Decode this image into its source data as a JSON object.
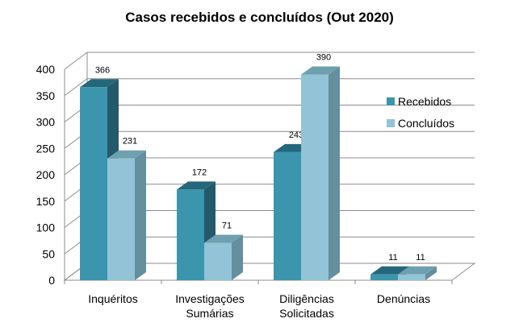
{
  "chart_data": {
    "type": "bar",
    "title": "Casos recebidos e concluídos (Out 2020)",
    "categories": [
      [
        "Inquéritos"
      ],
      [
        "Investigações",
        "Sumárias"
      ],
      [
        "Diligências",
        "Solicitadas"
      ],
      [
        "Denúncias"
      ]
    ],
    "series": [
      {
        "name": "Recebidos",
        "values": [
          366,
          172,
          243,
          11
        ],
        "color": "#3b95ad",
        "top_color": "#25677a",
        "side_color": "#23596b"
      },
      {
        "name": "Concluídos",
        "values": [
          231,
          71,
          390,
          11
        ],
        "color": "#92c3d6",
        "top_color": "#6fa0b0",
        "side_color": "#638f9e"
      }
    ],
    "ylim": [
      0,
      400
    ],
    "yticks": [
      0,
      50,
      100,
      150,
      200,
      250,
      300,
      350,
      400
    ],
    "grid": true,
    "legend_position": "right",
    "style": "3d-clustered-column"
  }
}
